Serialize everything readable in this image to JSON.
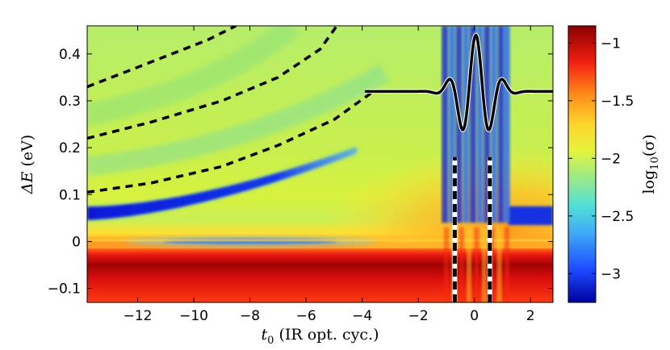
{
  "chart_data": {
    "type": "heatmap",
    "title": "",
    "xlabel": "t0 (IR opt. cyc.)",
    "xlabel_parts": {
      "var": "t",
      "sub": "0",
      "rest": " (IR opt. cyc.)"
    },
    "ylabel": "ΔE (eV)",
    "ylabel_parts": {
      "var": "ΔE",
      "rest": " (eV)"
    },
    "colorbar_label": "log10(σ)",
    "colorbar_parts": {
      "fn": "log",
      "sub": "10",
      "rest": "(σ)"
    },
    "xlim": [
      -13.8,
      2.8
    ],
    "ylim": [
      -0.13,
      0.46
    ],
    "clim": [
      -3.25,
      -0.85
    ],
    "xticks": [
      -12,
      -10,
      -8,
      -6,
      -4,
      -2,
      0,
      2
    ],
    "xtick_labels": [
      "−12",
      "−10",
      "−8",
      "−6",
      "−4",
      "−2",
      "0",
      "2"
    ],
    "yticks": [
      -0.1,
      0,
      0.1,
      0.2,
      0.3,
      0.4
    ],
    "ytick_labels": [
      "−0.1",
      "0",
      "0.1",
      "0.2",
      "0.3",
      "0.4"
    ],
    "cticks": [
      -3,
      -2.5,
      -2,
      -1.5,
      -1
    ],
    "ctick_labels": [
      "−3",
      "−2.5",
      "−2",
      "−1.5",
      "−1"
    ],
    "dashed_curves": [
      {
        "name": "sideband-curve-1",
        "x": [
          -13.8,
          -12.5,
          -11,
          -9.5,
          -8.5
        ],
        "y": [
          0.33,
          0.36,
          0.395,
          0.43,
          0.46
        ]
      },
      {
        "name": "sideband-curve-2",
        "x": [
          -13.8,
          -11.5,
          -9,
          -7,
          -5.5,
          -4.9
        ],
        "y": [
          0.22,
          0.255,
          0.3,
          0.35,
          0.41,
          0.46
        ]
      },
      {
        "name": "sideband-curve-3",
        "x": [
          -13.8,
          -11.5,
          -9,
          -7,
          -5,
          -3.6
        ],
        "y": [
          0.105,
          0.125,
          0.16,
          0.205,
          0.26,
          0.32
        ]
      }
    ],
    "dashed_verticals": [
      {
        "name": "pulse-window-left",
        "x": -0.7,
        "y": [
          -0.13,
          0.18
        ]
      },
      {
        "name": "pulse-window-right",
        "x": 0.55,
        "y": [
          -0.13,
          0.18
        ]
      }
    ],
    "pulse_overlay": {
      "x_start": -3.9,
      "x_end": 2.8,
      "center": 0.05,
      "baseline": 0.32,
      "amplitude": 0.12,
      "period": 1.0
    },
    "features": [
      {
        "name": "lower-red-band",
        "y": [
          -0.13,
          -0.02
        ],
        "value": -1.05
      },
      {
        "name": "blue-resonance-band",
        "x": [
          -13.8,
          -4.2
        ],
        "y": [
          0.06,
          0.2
        ],
        "value": -3.2
      },
      {
        "name": "zero-line-blue-ripple",
        "x": [
          -11,
          -4.8
        ],
        "y": 0.0,
        "value": -3.0
      }
    ]
  }
}
